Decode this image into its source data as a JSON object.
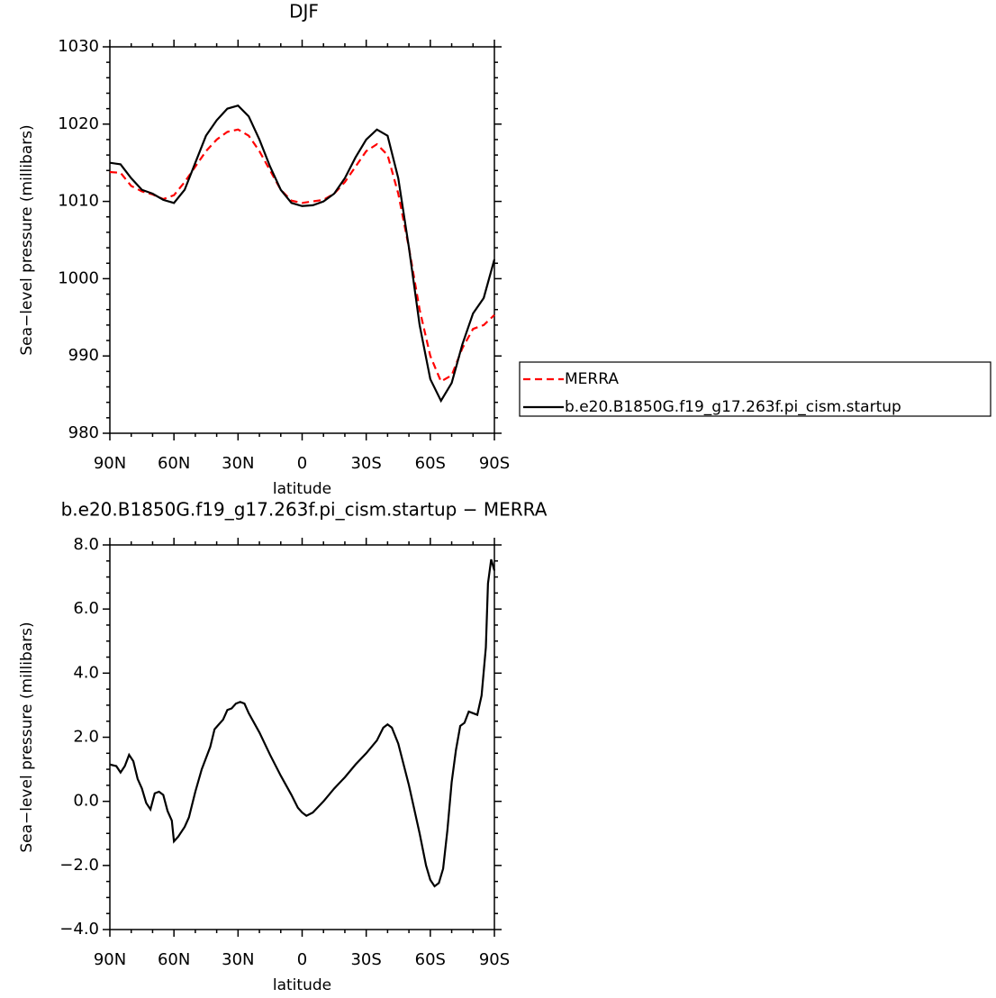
{
  "chart_data": [
    {
      "type": "line",
      "title": "DJF",
      "xlabel": "latitude",
      "ylabel": "Sea−level pressure (millibars)",
      "x": [
        90,
        85,
        80,
        75,
        70,
        65,
        60,
        55,
        50,
        45,
        40,
        35,
        30,
        25,
        20,
        15,
        10,
        5,
        0,
        -5,
        -10,
        -15,
        -20,
        -25,
        -30,
        -35,
        -40,
        -45,
        -50,
        -55,
        -60,
        -65,
        -70,
        -75,
        -80,
        -85,
        -90
      ],
      "series": [
        {
          "name": "MERRA",
          "color": "#ff0000",
          "line_style": "dashed",
          "values": [
            1013.8,
            1013.7,
            1012,
            1011.3,
            1010.9,
            1010.3,
            1010.8,
            1012.5,
            1014.5,
            1016.5,
            1018,
            1019,
            1019.3,
            1018.5,
            1016.5,
            1014,
            1011.5,
            1010.1,
            1009.8,
            1010,
            1010.2,
            1011,
            1012.5,
            1014.5,
            1016.5,
            1017.4,
            1016,
            1011,
            1004,
            996,
            990,
            986.7,
            987.5,
            991,
            993.5,
            994,
            995.3
          ]
        },
        {
          "name": "b.e20.B1850G.f19_g17.263f.pi_cism.startup",
          "color": "#000000",
          "line_style": "solid",
          "values": [
            1015,
            1014.8,
            1013,
            1011.5,
            1011,
            1010.2,
            1009.8,
            1011.5,
            1015,
            1018.5,
            1020.5,
            1022,
            1022.4,
            1021,
            1018,
            1014.5,
            1011.5,
            1009.8,
            1009.4,
            1009.5,
            1010,
            1011,
            1013,
            1015.7,
            1018,
            1019.3,
            1018.5,
            1013,
            1004,
            994,
            987,
            984.2,
            986.5,
            991.5,
            995.5,
            997.5,
            1002.5
          ]
        }
      ],
      "xlim": [
        90,
        -90
      ],
      "xticks": [
        {
          "value": 90,
          "label": "90N"
        },
        {
          "value": 60,
          "label": "60N"
        },
        {
          "value": 30,
          "label": "30N"
        },
        0,
        {
          "value": -30,
          "label": "30S"
        },
        {
          "value": -60,
          "label": "60S"
        },
        {
          "value": -90,
          "label": "90S"
        }
      ],
      "ylim": [
        980,
        1030
      ],
      "yticks": [
        980,
        990,
        1000,
        1010,
        1020,
        1030
      ],
      "legend": "right"
    },
    {
      "type": "line",
      "title": "b.e20.B1850G.f19_g17.263f.pi_cism.startup − MERRA",
      "xlabel": "latitude",
      "ylabel": "Sea−level pressure (millibars)",
      "x": [
        90,
        87,
        85,
        83,
        81,
        79,
        77,
        75,
        73,
        71,
        69,
        67,
        65,
        63,
        61,
        60,
        58,
        55,
        53,
        50,
        47,
        45,
        43,
        41,
        39,
        37,
        35,
        33,
        31,
        29,
        27,
        25,
        20,
        15,
        10,
        5,
        2,
        0,
        -2,
        -5,
        -10,
        -15,
        -20,
        -25,
        -30,
        -35,
        -38,
        -40,
        -42,
        -45,
        -50,
        -55,
        -58,
        -60,
        -62,
        -64,
        -66,
        -68,
        -70,
        -72,
        -74,
        -76,
        -78,
        -80,
        -82,
        -84,
        -86,
        -87,
        -88.5,
        -90
      ],
      "values": [
        1.15,
        1.1,
        0.9,
        1.1,
        1.45,
        1.25,
        0.7,
        0.4,
        -0.05,
        -0.25,
        0.25,
        0.3,
        0.2,
        -0.3,
        -0.6,
        -1.25,
        -1.1,
        -0.8,
        -0.5,
        0.3,
        1.0,
        1.35,
        1.7,
        2.25,
        2.4,
        2.55,
        2.85,
        2.9,
        3.05,
        3.1,
        3.05,
        2.75,
        2.15,
        1.45,
        0.8,
        0.2,
        -0.2,
        -0.35,
        -0.45,
        -0.35,
        0.0,
        0.4,
        0.75,
        1.15,
        1.5,
        1.9,
        2.3,
        2.4,
        2.3,
        1.8,
        0.5,
        -1.0,
        -2.0,
        -2.45,
        -2.65,
        -2.55,
        -2.1,
        -0.9,
        0.6,
        1.6,
        2.35,
        2.45,
        2.8,
        2.75,
        2.7,
        3.3,
        4.8,
        6.8,
        7.55,
        7.2
      ],
      "color": "#000000",
      "xlim": [
        90,
        -90
      ],
      "xticks": [
        {
          "value": 90,
          "label": "90N"
        },
        {
          "value": 60,
          "label": "60N"
        },
        {
          "value": 30,
          "label": "30N"
        },
        0,
        {
          "value": -30,
          "label": "30S"
        },
        {
          "value": -60,
          "label": "60S"
        },
        {
          "value": -90,
          "label": "90S"
        }
      ],
      "ylim": [
        -4,
        8
      ],
      "yticks": [
        {
          "value": -4,
          "label": "−4.0"
        },
        {
          "value": -2,
          "label": "−2.0"
        },
        {
          "value": 0,
          "label": "0.0"
        },
        {
          "value": 2,
          "label": "2.0"
        },
        {
          "value": 4,
          "label": "4.0"
        },
        {
          "value": 6,
          "label": "6.0"
        },
        {
          "value": 8,
          "label": "8.0"
        }
      ]
    }
  ]
}
